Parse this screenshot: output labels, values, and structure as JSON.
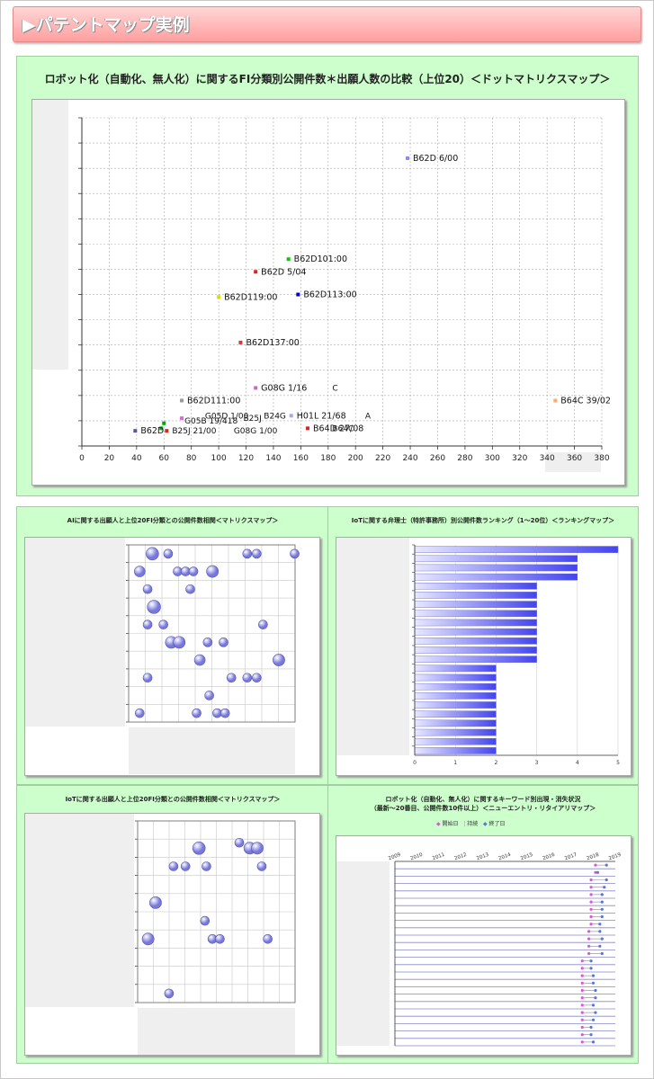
{
  "header": {
    "title": "▶パテントマップ実例"
  },
  "main_chart": {
    "title": "ロボット化（自動化、無人化）に関するFI分類別公開件数＊出願人数の比較（上位20）＜ドットマトリクスマップ＞",
    "chart_data": {
      "type": "scatter",
      "xlim": [
        0,
        380
      ],
      "x_ticks": [
        0,
        20,
        40,
        60,
        80,
        100,
        120,
        140,
        160,
        180,
        200,
        220,
        240,
        260,
        280,
        300,
        320,
        340,
        360,
        380
      ],
      "ylim": [
        0,
        13
      ],
      "grid": true,
      "points": [
        {
          "x": 238,
          "y": 11.4,
          "label": "B62D  6/00",
          "color": "#8888ff"
        },
        {
          "x": 151,
          "y": 7.4,
          "label": "B62D101:00",
          "color": "#00cc00"
        },
        {
          "x": 127,
          "y": 6.9,
          "label": "B62D  5/04",
          "color": "#dd2222"
        },
        {
          "x": 158,
          "y": 6.0,
          "label": "B62D113:00",
          "color": "#0000cc"
        },
        {
          "x": 100,
          "y": 5.9,
          "label": "B62D119:00",
          "color": "#dddd00"
        },
        {
          "x": 116,
          "y": 4.1,
          "label": "B62D137:00",
          "color": "#dd3333"
        },
        {
          "x": 127,
          "y": 2.3,
          "label": "G08G  1/16",
          "color": "#cc66cc"
        },
        {
          "x": 73,
          "y": 1.8,
          "label": "B62D111:00",
          "color": "#999999"
        },
        {
          "x": 346,
          "y": 1.8,
          "label": "B64C 39/02",
          "color": "#ffaa66"
        },
        {
          "x": 153,
          "y": 1.2,
          "label": "H01L 21/68",
          "color": "#aaaadd"
        },
        {
          "x": 165,
          "y": 0.7,
          "label": "B64D 27/08",
          "color": "#dd2222"
        },
        {
          "x": 60,
          "y": 0.9,
          "label": "",
          "color": "#00aa00"
        },
        {
          "x": 58,
          "y": 0.7,
          "label": "",
          "color": "#00aa00"
        },
        {
          "x": 73,
          "y": 1.1,
          "label": "",
          "color": "#dd66dd"
        },
        {
          "x": 39,
          "y": 0.6,
          "label": "B62D",
          "color": "#5555aa"
        },
        {
          "x": 62,
          "y": 0.6,
          "label": "",
          "color": "#dd2222"
        }
      ],
      "extra_labels": [
        {
          "x": 183,
          "y": 2.3,
          "text": "C"
        },
        {
          "x": 207,
          "y": 1.2,
          "text": "A"
        },
        {
          "x": 183,
          "y": 0.7,
          "text": "B64C"
        },
        {
          "x": 90,
          "y": 1.2,
          "text": "G05D  1/00"
        },
        {
          "x": 118,
          "y": 1.1,
          "text": "B25J"
        },
        {
          "x": 133,
          "y": 1.2,
          "text": "B24G"
        },
        {
          "x": 75,
          "y": 1.0,
          "text": "G05B 19/418"
        },
        {
          "x": 66,
          "y": 0.6,
          "text": "B25J 21/00"
        },
        {
          "x": 111,
          "y": 0.6,
          "text": "G08G 1/00"
        }
      ]
    }
  },
  "panels": {
    "ai_bubble": {
      "title": "AIに関する出願人と上位20FI分類との公開件数相関＜マトリクスマップ＞",
      "chart_data": {
        "type": "scatter",
        "cols": 10,
        "rows": 10,
        "bubbles": [
          [
            1,
            10,
            2
          ],
          [
            2,
            10,
            1
          ],
          [
            7,
            10,
            1
          ],
          [
            7.6,
            10,
            1
          ],
          [
            10,
            10,
            1
          ],
          [
            0.2,
            9,
            1.5
          ],
          [
            2.6,
            9,
            1
          ],
          [
            3.1,
            9,
            1
          ],
          [
            3.6,
            9,
            1
          ],
          [
            4.8,
            9,
            1.8
          ],
          [
            0.7,
            8,
            1
          ],
          [
            3.4,
            8,
            1
          ],
          [
            1.1,
            7,
            2.2
          ],
          [
            0.7,
            6,
            1
          ],
          [
            1.7,
            6,
            1
          ],
          [
            8,
            6,
            1
          ],
          [
            2.2,
            5,
            1.8
          ],
          [
            2.7,
            5,
            1.8
          ],
          [
            4.5,
            5,
            1
          ],
          [
            5.5,
            5,
            1
          ],
          [
            4,
            4,
            1.5
          ],
          [
            9,
            4,
            1.8
          ],
          [
            0.7,
            3,
            1
          ],
          [
            6,
            3,
            1
          ],
          [
            7,
            3,
            1
          ],
          [
            7.6,
            3,
            1
          ],
          [
            4.6,
            2,
            1
          ],
          [
            0.2,
            1,
            1
          ],
          [
            3.8,
            1,
            1
          ],
          [
            5.1,
            1,
            1
          ],
          [
            5.6,
            1,
            1
          ]
        ]
      }
    },
    "iot_ranking": {
      "title": "IoTに関する弁理士（特許事務所）別公開件数ランキング（1～20位）＜ランキングマップ＞",
      "chart_data": {
        "type": "bar",
        "orientation": "horizontal",
        "xlim": [
          0,
          5
        ],
        "x_ticks": [
          "0",
          "1",
          "2",
          "3",
          "4",
          "5"
        ],
        "values": [
          5,
          4,
          4,
          4,
          3,
          3,
          3,
          3,
          3,
          3,
          3,
          3,
          3,
          2,
          2,
          2,
          2,
          2,
          2,
          2,
          2,
          2,
          2
        ]
      }
    },
    "iot_bubble": {
      "title": "IoTに関する出願人と上位20FI分類との公開件数相関＜マトリクスマップ＞",
      "chart_data": {
        "type": "scatter",
        "cols": 10,
        "rows": 10,
        "bubbles": [
          [
            3.6,
            9,
            2
          ],
          [
            6.3,
            9.3,
            1
          ],
          [
            7,
            9,
            1.8
          ],
          [
            7.5,
            9,
            1.8
          ],
          [
            1.9,
            8,
            1
          ],
          [
            2.7,
            8,
            1
          ],
          [
            4.1,
            8,
            1
          ],
          [
            7.8,
            8,
            1
          ],
          [
            0.7,
            6,
            1.8
          ],
          [
            4,
            5,
            1
          ],
          [
            0.2,
            4,
            1.8
          ],
          [
            4.5,
            4,
            1
          ],
          [
            5,
            4,
            1
          ],
          [
            8.2,
            4,
            1
          ],
          [
            1.6,
            1,
            1
          ]
        ]
      }
    },
    "keyword_timeline": {
      "title": "ロボット化（自動化、無人化）に関するキーワード別出現・消失状況",
      "subtitle": "（最新～20番目、公開件数10件以上）＜ニューエントリ・リタイアリマップ＞",
      "legend": [
        "開始日",
        "持続",
        "終了日"
      ],
      "chart_data": {
        "type": "line",
        "years": [
          "2009",
          "2010",
          "2011",
          "2012",
          "2013",
          "2014",
          "2015",
          "2016",
          "2017",
          "2018",
          "2019"
        ],
        "rows": [
          [
            2018.1,
            2018.6
          ],
          [
            2018.1,
            2018.2
          ],
          [
            2017.9,
            2018.6
          ],
          [
            2017.9,
            2018.5
          ],
          [
            2017.9,
            2018.4
          ],
          [
            2017.9,
            2018.4
          ],
          [
            2017.9,
            2018.4
          ],
          [
            2017.9,
            2018.4
          ],
          [
            2017.9,
            2018.3
          ],
          [
            2017.8,
            2018.3
          ],
          [
            2017.8,
            2018.4
          ],
          [
            2017.8,
            2018.3
          ],
          [
            2017.8,
            2018.4
          ],
          [
            2017.5,
            2017.9
          ],
          [
            2017.5,
            2017.9
          ],
          [
            2017.5,
            2018.0
          ],
          [
            2017.5,
            2018.0
          ],
          [
            2017.5,
            2018.1
          ],
          [
            2017.5,
            2018.1
          ],
          [
            2017.5,
            2018.0
          ],
          [
            2017.5,
            2018.1
          ],
          [
            2017.5,
            2018.0
          ],
          [
            2017.5,
            2017.9
          ],
          [
            2017.5,
            2017.9
          ],
          [
            2017.5,
            2018.0
          ]
        ]
      }
    }
  }
}
